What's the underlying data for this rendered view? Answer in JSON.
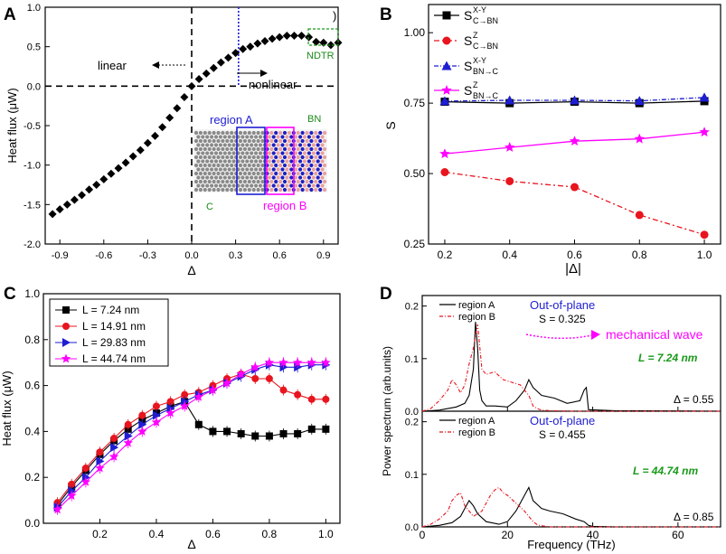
{
  "panels": {
    "A": {
      "label": "A",
      "ylabel": "Heat flux (μW)",
      "xlabel": "Δ",
      "xticks": [
        "-0.9",
        "-0.6",
        "-0.3",
        "0.0",
        "0.3",
        "0.6",
        "0.9"
      ],
      "yticks": [
        "1.0",
        "0.5",
        "0.0",
        "-0.5",
        "-1.0",
        "-1.5",
        "-2.0"
      ],
      "ann_linear": "linear",
      "ann_nonlinear": "nonlinear",
      "ann_ndtr": "NDTR",
      "ann_paren": ")",
      "ann_regionA": "region A",
      "ann_regionB": "region B",
      "ann_bn": "BN",
      "ann_c": "C"
    },
    "B": {
      "label": "B",
      "ylabel": "S",
      "xlabel": "|Δ|",
      "xticks": [
        "0.2",
        "0.4",
        "0.6",
        "0.8",
        "1.0"
      ],
      "yticks": [
        "1.00",
        "0.75",
        "0.50",
        "0.25"
      ],
      "legend": [
        {
          "base": "S",
          "sup": "X-Y",
          "sub": "C→BN"
        },
        {
          "base": "S",
          "sup": "Z",
          "sub": "C→BN"
        },
        {
          "base": "S",
          "sup": "X-Y",
          "sub": "BN→C"
        },
        {
          "base": "S",
          "sup": "Z",
          "sub": "BN→C"
        }
      ]
    },
    "C": {
      "label": "C",
      "ylabel": "Heat flux (μW)",
      "xlabel": "Δ",
      "xticks": [
        "0.2",
        "0.4",
        "0.6",
        "0.8",
        "1.0"
      ],
      "yticks": [
        "1.0",
        "0.8",
        "0.6",
        "0.4",
        "0.2",
        "0.0"
      ],
      "legend": [
        "L =  7.24 nm",
        "L =  14.91 nm",
        "L =  29.83 nm",
        "L =  44.74 nm"
      ]
    },
    "D": {
      "label": "D",
      "ylabel": "Power spectrum (arb.units)",
      "xlabel": "Frequency (THz)",
      "xticks": [
        "0",
        "20",
        "40",
        "60"
      ],
      "top": {
        "legend": [
          "region A",
          "region B"
        ],
        "title": "Out-of-plane",
        "s_text": "S = 0.325",
        "wave_text": "mechanical wave",
        "l_text": "L = 7.24 nm",
        "delta_text": "Δ  = 0.55",
        "yticks": [
          "0.2",
          "0.1",
          "0.0"
        ]
      },
      "bottom": {
        "legend": [
          "region A",
          "region B"
        ],
        "title": "Out-of-plane",
        "s_text": "S = 0.455",
        "l_text": "L = 44.74 nm",
        "delta_text": "Δ  = 0.85",
        "yticks": [
          "0.2",
          "0.1",
          "0.0"
        ]
      }
    }
  },
  "chart_data": [
    {
      "type": "scatter",
      "panel": "A",
      "xlim": [
        -1.0,
        1.0
      ],
      "ylim": [
        -2.0,
        1.0
      ],
      "series": [
        {
          "name": "heat flux",
          "x": [
            -0.95,
            -0.9,
            -0.85,
            -0.8,
            -0.75,
            -0.7,
            -0.65,
            -0.6,
            -0.55,
            -0.5,
            -0.45,
            -0.4,
            -0.35,
            -0.3,
            -0.25,
            -0.2,
            -0.15,
            -0.1,
            -0.05,
            0.0,
            0.05,
            0.1,
            0.15,
            0.2,
            0.25,
            0.3,
            0.35,
            0.4,
            0.45,
            0.5,
            0.55,
            0.6,
            0.65,
            0.7,
            0.75,
            0.8,
            0.85,
            0.9,
            0.95,
            1.0
          ],
          "y": [
            -1.62,
            -1.56,
            -1.5,
            -1.44,
            -1.38,
            -1.31,
            -1.25,
            -1.18,
            -1.11,
            -1.04,
            -0.97,
            -0.89,
            -0.81,
            -0.72,
            -0.63,
            -0.52,
            -0.4,
            -0.28,
            -0.14,
            0.0,
            0.09,
            0.16,
            0.23,
            0.3,
            0.36,
            0.42,
            0.47,
            0.5,
            0.54,
            0.57,
            0.6,
            0.62,
            0.64,
            0.64,
            0.64,
            0.62,
            0.56,
            0.55,
            0.52,
            0.55
          ]
        }
      ]
    },
    {
      "type": "line",
      "panel": "B",
      "xlim": [
        0.15,
        1.05
      ],
      "ylim": [
        0.25,
        1.1
      ],
      "x": [
        0.2,
        0.4,
        0.6,
        0.8,
        1.0
      ],
      "series": [
        {
          "name": "S X-Y C→BN",
          "values": [
            0.755,
            0.75,
            0.755,
            0.75,
            0.757
          ],
          "color": "#000000"
        },
        {
          "name": "S Z C→BN",
          "values": [
            0.505,
            0.473,
            0.452,
            0.353,
            0.283
          ],
          "color": "#e8141e"
        },
        {
          "name": "S X-Y BN→C",
          "values": [
            0.757,
            0.76,
            0.76,
            0.758,
            0.77
          ],
          "color": "#1e1ed2"
        },
        {
          "name": "S Z BN→C",
          "values": [
            0.57,
            0.593,
            0.615,
            0.623,
            0.647
          ],
          "color": "#ff00ff"
        }
      ]
    },
    {
      "type": "line",
      "panel": "C",
      "xlim": [
        0.0,
        1.05
      ],
      "ylim": [
        0.0,
        1.0
      ],
      "x": [
        0.05,
        0.1,
        0.15,
        0.2,
        0.25,
        0.3,
        0.35,
        0.4,
        0.45,
        0.5,
        0.55,
        0.6,
        0.65,
        0.7,
        0.75,
        0.8,
        0.85,
        0.9,
        0.95,
        1.0
      ],
      "series": [
        {
          "name": "L = 7.24 nm",
          "color": "#000000",
          "values": [
            0.08,
            0.16,
            0.23,
            0.3,
            0.36,
            0.41,
            0.45,
            0.48,
            0.51,
            0.53,
            0.43,
            0.4,
            0.4,
            0.39,
            0.38,
            0.38,
            0.39,
            0.39,
            0.41,
            0.41
          ]
        },
        {
          "name": "L = 14.91 nm",
          "color": "#e8141e",
          "values": [
            0.09,
            0.17,
            0.24,
            0.31,
            0.37,
            0.43,
            0.47,
            0.51,
            0.53,
            0.56,
            0.57,
            0.6,
            0.63,
            0.65,
            0.63,
            0.63,
            0.58,
            0.56,
            0.54,
            0.54
          ]
        },
        {
          "name": "L = 29.83 nm",
          "color": "#1e1ed2",
          "values": [
            0.07,
            0.14,
            0.2,
            0.27,
            0.33,
            0.38,
            0.43,
            0.47,
            0.5,
            0.53,
            0.56,
            0.58,
            0.61,
            0.64,
            0.67,
            0.69,
            0.68,
            0.68,
            0.69,
            0.69
          ]
        },
        {
          "name": "L = 44.74 nm",
          "color": "#ff00ff",
          "values": [
            0.06,
            0.12,
            0.18,
            0.24,
            0.29,
            0.35,
            0.4,
            0.44,
            0.48,
            0.51,
            0.55,
            0.58,
            0.61,
            0.65,
            0.68,
            0.7,
            0.7,
            0.7,
            0.7,
            0.7
          ]
        }
      ]
    },
    {
      "type": "line",
      "panel": "D-top",
      "xlim": [
        0,
        70
      ],
      "ylim": [
        0,
        0.22
      ],
      "series": [
        {
          "name": "region A",
          "color": "#000000",
          "x": [
            0,
            4,
            8,
            10,
            11,
            12,
            12.5,
            13,
            13.5,
            14,
            15,
            17,
            20,
            22,
            24,
            25,
            26,
            28,
            31,
            34,
            37,
            38,
            38.5,
            39,
            45,
            70
          ],
          "values": [
            0,
            0.002,
            0.008,
            0.015,
            0.03,
            0.08,
            0.17,
            0.12,
            0.04,
            0.02,
            0.01,
            0.01,
            0.008,
            0.02,
            0.04,
            0.06,
            0.045,
            0.03,
            0.025,
            0.015,
            0.02,
            0.04,
            0.045,
            0.003,
            0.001,
            0
          ]
        },
        {
          "name": "region B",
          "color": "#e8141e",
          "x": [
            0,
            2,
            4,
            6,
            7,
            8,
            9,
            10,
            11,
            12,
            13,
            14,
            15,
            17,
            19,
            21,
            23,
            25,
            26,
            27,
            28,
            30,
            35,
            70
          ],
          "values": [
            0,
            0.005,
            0.02,
            0.04,
            0.06,
            0.05,
            0.035,
            0.05,
            0.09,
            0.12,
            0.165,
            0.08,
            0.07,
            0.075,
            0.06,
            0.055,
            0.05,
            0.03,
            0.01,
            0.005,
            0.002,
            0.001,
            0,
            0
          ]
        }
      ]
    },
    {
      "type": "line",
      "panel": "D-bottom",
      "xlim": [
        0,
        70
      ],
      "ylim": [
        0,
        0.22
      ],
      "series": [
        {
          "name": "region A",
          "color": "#000000",
          "x": [
            0,
            4,
            7,
            9,
            10,
            11,
            12,
            13,
            15,
            18,
            20,
            22,
            24,
            25,
            26,
            28,
            30,
            33,
            36,
            38,
            39,
            40,
            45,
            70
          ],
          "values": [
            0,
            0.003,
            0.008,
            0.02,
            0.035,
            0.05,
            0.04,
            0.025,
            0.01,
            0.005,
            0.01,
            0.03,
            0.06,
            0.075,
            0.05,
            0.035,
            0.03,
            0.025,
            0.015,
            0.01,
            0.003,
            0.001,
            0,
            0
          ]
        },
        {
          "name": "region B",
          "color": "#e8141e",
          "x": [
            0,
            2,
            4,
            6,
            7,
            8,
            9,
            10,
            11,
            12,
            14,
            16,
            17,
            18,
            19,
            20,
            22,
            24,
            25,
            26,
            27,
            28,
            30,
            70
          ],
          "values": [
            0,
            0.005,
            0.015,
            0.03,
            0.05,
            0.06,
            0.065,
            0.04,
            0.03,
            0.02,
            0.03,
            0.06,
            0.07,
            0.075,
            0.065,
            0.06,
            0.045,
            0.03,
            0.02,
            0.01,
            0.004,
            0.002,
            0,
            0
          ]
        }
      ]
    }
  ]
}
